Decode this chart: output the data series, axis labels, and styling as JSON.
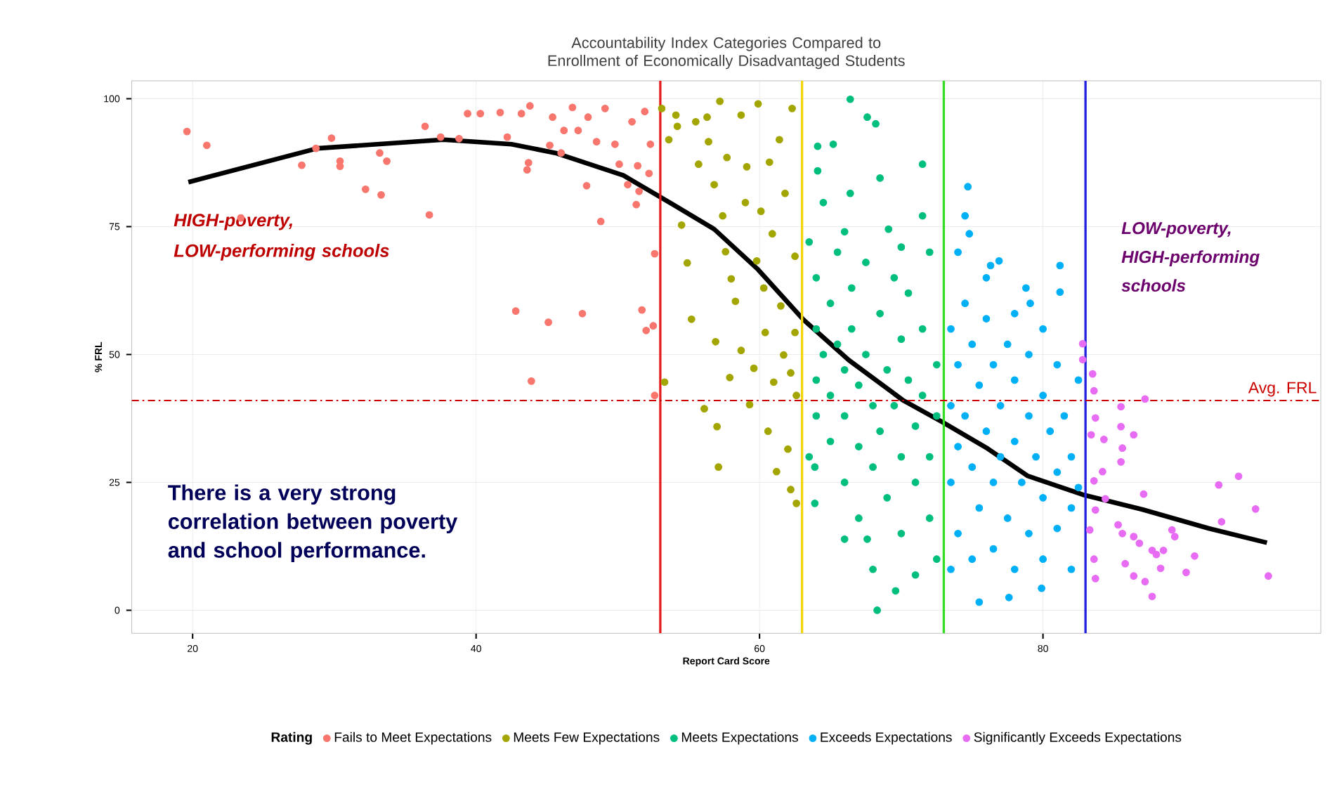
{
  "chart_data": {
    "type": "scatter",
    "title": "Accountability Index Categories Compared to Enrollment of Economically Disadvantaged Students",
    "xlabel": "Report Card Score",
    "ylabel": "% FRL",
    "legend_title": "Rating",
    "xlim": [
      15.7,
      99.6
    ],
    "ylim": [
      -4.5,
      103.5
    ],
    "xticks": [
      20,
      40,
      60,
      80
    ],
    "yticks": [
      0,
      25,
      50,
      75,
      100
    ],
    "grid": true,
    "legend": "bottom",
    "series": [
      {
        "name": "Fails to Meet Expectations",
        "color": "#f8766d",
        "marker": "circle",
        "x": [
          19.6,
          21.0,
          23.4,
          27.7,
          28.7,
          29.8,
          30.4,
          30.4,
          32.2,
          33.2,
          33.3,
          33.7,
          36.4,
          36.7,
          37.5,
          38.8,
          39.4,
          40.3,
          41.7,
          42.2,
          42.8,
          43.2,
          43.6,
          43.7,
          43.8,
          43.9,
          45.1,
          45.2,
          45.4,
          46.0,
          46.2,
          46.8,
          47.2,
          47.5,
          47.8,
          47.9,
          48.5,
          48.8,
          49.1,
          49.8,
          50.1,
          50.7,
          51.0,
          51.4,
          51.5,
          51.3,
          51.7,
          52.0,
          52.2,
          52.3,
          52.5,
          52.6,
          52.6,
          51.9
        ],
        "values": [
          93.6,
          90.9,
          76.7,
          87,
          90.3,
          92.3,
          87.8,
          86.8,
          82.3,
          89.4,
          81.2,
          87.8,
          94.6,
          77.3,
          92.5,
          92.2,
          97.1,
          97.1,
          97.3,
          92.5,
          58.5,
          97.1,
          86.1,
          87.5,
          98.6,
          44.8,
          56.3,
          90.9,
          96.4,
          89.4,
          93.8,
          98.3,
          93.8,
          58,
          83,
          96.4,
          91.6,
          76,
          98.1,
          91.1,
          87.2,
          83.2,
          95.5,
          86.9,
          81.9,
          79.3,
          58.7,
          54.7,
          85.4,
          91.1,
          55.6,
          69.7,
          42,
          97.5
        ]
      },
      {
        "name": "Meets Few Expectations",
        "color": "#a3a500",
        "marker": "circle",
        "x": [
          53.1,
          53.3,
          53.6,
          54.1,
          54.2,
          54.5,
          54.9,
          55.2,
          55.5,
          55.7,
          56.1,
          56.3,
          56.4,
          56.8,
          56.9,
          57.0,
          57.1,
          57.2,
          57.4,
          57.6,
          57.7,
          57.9,
          58.0,
          58.3,
          58.7,
          58.7,
          59.0,
          59.1,
          59.3,
          59.6,
          59.8,
          59.9,
          60.1,
          60.3,
          60.4,
          60.6,
          60.7,
          60.9,
          61.0,
          61.2,
          61.4,
          61.5,
          61.7,
          61.8,
          62.0,
          62.2,
          62.3,
          62.5,
          62.5,
          62.6,
          62.6,
          62.2
        ],
        "values": [
          98.1,
          44.6,
          92,
          96.8,
          94.6,
          75.3,
          67.9,
          56.9,
          95.5,
          87.2,
          39.4,
          96.4,
          91.6,
          83.2,
          52.5,
          35.9,
          28,
          99.5,
          77.1,
          70.1,
          88.5,
          45.5,
          64.8,
          60.4,
          96.8,
          50.8,
          79.7,
          86.7,
          40.2,
          47.3,
          68.3,
          99,
          78,
          63,
          54.3,
          35,
          87.6,
          73.6,
          44.6,
          27.1,
          92,
          59.5,
          49.9,
          81.5,
          31.5,
          23.6,
          98.1,
          69.2,
          54.3,
          42,
          20.9,
          46.4
        ]
      },
      {
        "name": "Meets Expectations",
        "color": "#00bf7d",
        "marker": "circle",
        "x": [
          64.1,
          63.9,
          63.9,
          64.1,
          64.5,
          65.2,
          66.0,
          66.4,
          66.4,
          67.6,
          67.6,
          68.2,
          68.3,
          68.5,
          69.1,
          69.6,
          71.5,
          71.5,
          71.0,
          64,
          64,
          64,
          64,
          64.5,
          65,
          65,
          65,
          65.5,
          65.5,
          66,
          66,
          66,
          66.5,
          66.5,
          67,
          67,
          67,
          67.5,
          67.5,
          68,
          68,
          68.5,
          68.5,
          69,
          69,
          69.5,
          69.5,
          70,
          70,
          70,
          70.5,
          70.5,
          71,
          71,
          71.5,
          71.5,
          72,
          72,
          72,
          72.5,
          72.5,
          72.5,
          63.5,
          63.5,
          68,
          70,
          66
        ],
        "values": [
          90.7,
          28,
          20.9,
          85.9,
          79.7,
          91.1,
          13.9,
          99.9,
          81.5,
          96.4,
          13.9,
          95.1,
          0,
          84.5,
          74.5,
          3.8,
          87.2,
          77.1,
          6.9,
          65,
          55,
          45,
          38,
          50,
          60,
          42,
          33,
          70,
          52,
          47,
          38,
          25,
          63,
          55,
          44,
          32,
          18,
          68,
          50,
          40,
          28,
          58,
          35,
          47,
          22,
          65,
          40,
          53,
          30,
          15,
          45,
          62,
          36,
          25,
          55,
          42,
          70,
          30,
          18,
          48,
          38,
          10,
          72,
          30,
          8,
          71,
          74
        ]
      },
      {
        "name": "Exceeds Expectations",
        "color": "#00b0f6",
        "marker": "circle",
        "x": [
          74.7,
          74.5,
          74.8,
          76.9,
          76.3,
          81.2,
          81.2,
          79.1,
          78.8,
          75.5,
          77.6,
          79.9,
          73.5,
          73.5,
          73.5,
          74,
          74,
          74,
          74.5,
          74.5,
          75,
          75,
          75,
          75.5,
          75.5,
          76,
          76,
          76.5,
          76.5,
          76.5,
          77,
          77,
          77.5,
          77.5,
          78,
          78,
          78,
          78.5,
          79,
          79,
          79,
          79.5,
          80,
          80,
          80,
          80.5,
          81,
          81,
          81,
          81.5,
          82,
          82,
          82,
          82.5,
          82.5,
          76,
          78,
          80,
          74,
          73.5
        ],
        "values": [
          82.8,
          77.1,
          73.6,
          68.3,
          67.4,
          67.4,
          62.2,
          60,
          63,
          1.6,
          2.5,
          4.3,
          55,
          40,
          25,
          48,
          32,
          15,
          60,
          38,
          52,
          28,
          10,
          44,
          20,
          57,
          35,
          48,
          25,
          12,
          40,
          30,
          52,
          18,
          45,
          33,
          8,
          25,
          50,
          38,
          15,
          30,
          42,
          22,
          10,
          35,
          48,
          27,
          16,
          38,
          30,
          20,
          8,
          45,
          24,
          65,
          58,
          55,
          70,
          8
        ]
      },
      {
        "name": "Significantly Exceeds Expectations",
        "color": "#e76bf3",
        "marker": "circle",
        "x": [
          82.8,
          82.8,
          83.5,
          83.6,
          83.4,
          84.3,
          87.2,
          85.5,
          85.5,
          86.4,
          85.6,
          85.5,
          84.2,
          83.6,
          84.4,
          87.1,
          83.7,
          85.3,
          85.6,
          86.4,
          86.8,
          87.7,
          88.5,
          88.0,
          89.1,
          89.3,
          90.7,
          90.1,
          88.3,
          87.2,
          87.7,
          86.4,
          85.8,
          83.7,
          83.6,
          92.4,
          93.8,
          95.0,
          92.6,
          95.9,
          83.7,
          83.3
        ],
        "values": [
          52.1,
          49.0,
          46.2,
          42.9,
          34.3,
          33.4,
          41.3,
          39.8,
          35.9,
          34.3,
          31.7,
          29.0,
          27.1,
          25.3,
          21.8,
          22.7,
          19.6,
          16.7,
          15,
          14.4,
          13.1,
          11.7,
          11.7,
          10.9,
          15.7,
          14.4,
          10.6,
          7.4,
          8.2,
          5.6,
          2.7,
          6.7,
          9.1,
          6.2,
          10,
          24.5,
          26.2,
          19.8,
          17.3,
          6.7,
          37.6,
          15.7
        ]
      },
      {
        "type": "line",
        "color": "#000000",
        "marker": "none",
        "x": [
          19.7,
          28.8,
          37.7,
          42.5,
          45.6,
          50.4,
          53.9,
          56.8,
          59.9,
          63.1,
          66.3,
          70.1,
          72.9,
          76.1,
          78.9,
          82.8,
          87,
          91.7,
          95.8
        ],
        "values": [
          83.7,
          90.3,
          92,
          91.1,
          89.4,
          85,
          79.3,
          74.5,
          66.6,
          56.8,
          48.9,
          41.1,
          36.8,
          31.6,
          26.3,
          22.6,
          19.7,
          16,
          13.2
        ]
      }
    ],
    "ref_lines": [
      {
        "axis": "x",
        "value": 53,
        "color": "#e41a1c"
      },
      {
        "axis": "x",
        "value": 63,
        "color": "#f5d50a"
      },
      {
        "axis": "x",
        "value": 73,
        "color": "#33dd22"
      },
      {
        "axis": "x",
        "value": 83,
        "color": "#2222dd"
      },
      {
        "axis": "y",
        "value": 41,
        "label": "Avg. FRL",
        "color": "#cc0000",
        "line_style": "dashed"
      }
    ],
    "annotations": [
      "HIGH-poverty, LOW-performing schools",
      "LOW-poverty, HIGH-performing schools",
      "There is a very strong correlation between poverty and school performance."
    ]
  }
}
